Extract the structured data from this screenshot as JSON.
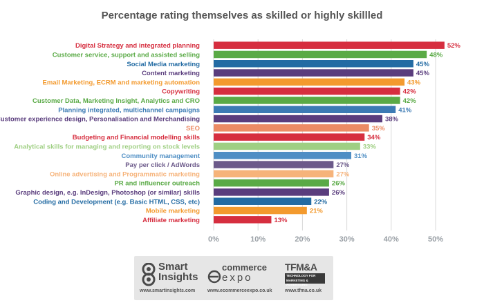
{
  "chart_data": {
    "type": "bar",
    "orientation": "horizontal",
    "title": "Percentage rating themselves as skilled or highly skillled",
    "xlim": [
      0,
      55
    ],
    "x_ticks": [
      0,
      10,
      20,
      30,
      40,
      50
    ],
    "x_tick_labels": [
      "0%",
      "10%",
      "20%",
      "30%",
      "40%",
      "50%"
    ],
    "grid": true,
    "categories": [
      "Digital Strategy and integrated planning",
      "Customer service, support and assisted selling",
      "Social Media marketing",
      "Content marketing",
      "Email Marketing, ECRM and marketing automation",
      "Copywriting",
      "Customer Data, Marketing Insight, Analytics and CRO",
      "Planning integrated, multichannel campaigns",
      "Customer experience design, Personalisation and Merchandising",
      "SEO",
      "Budgeting and Financial modelling skills",
      "Analytical skills for managing and reporting on stock levels",
      "Community management",
      "Pay per click / AdWords",
      "Online advertising and Programmatic marketing",
      "PR and influencer outreach",
      "Graphic design, e.g. InDesign, Photoshop (or similar) skills",
      "Coding and Development (e.g. Basic HTML, CSS, etc)",
      "Mobile marketing",
      "Affiliate marketing"
    ],
    "values": [
      52,
      48,
      45,
      45,
      43,
      42,
      42,
      41,
      38,
      35,
      34,
      33,
      31,
      27,
      27,
      26,
      26,
      22,
      21,
      13
    ],
    "value_labels": [
      "52%",
      "48%",
      "45%",
      "45%",
      "43%",
      "42%",
      "42%",
      "41%",
      "38%",
      "35%",
      "34%",
      "33%",
      "31%",
      "27%",
      "27%",
      "26%",
      "26%",
      "22%",
      "21%",
      "13%"
    ],
    "colors": [
      "#d62e3f",
      "#5aaa46",
      "#236ba3",
      "#5a3d7d",
      "#f39a2e",
      "#d62e3f",
      "#5aaa46",
      "#3c7bb4",
      "#5a3d7d",
      "#ec8b65",
      "#d62e3f",
      "#9fcf83",
      "#4e8ec4",
      "#6c5a8a",
      "#f6b37a",
      "#5aaa46",
      "#5a3d7d",
      "#236ba3",
      "#f39a2e",
      "#d62e3f"
    ],
    "grid_color": "#d8d8d8"
  },
  "logos": [
    {
      "icon": "smart-insights-icon",
      "name_lines": [
        "Smart",
        "Insights"
      ],
      "url": "www.smartinsights.com"
    },
    {
      "icon": "ecommerce-expo-icon",
      "name_lines": [
        "commerce",
        "expo"
      ],
      "url": "www.ecommerceexpo.co.uk"
    },
    {
      "icon": "tfmsa-icon",
      "name_lines": [
        "TFM&A",
        "TECHNOLOGY FOR",
        "MARKETING & ADVERTISING"
      ],
      "url": "www.tfma.co.uk"
    }
  ]
}
